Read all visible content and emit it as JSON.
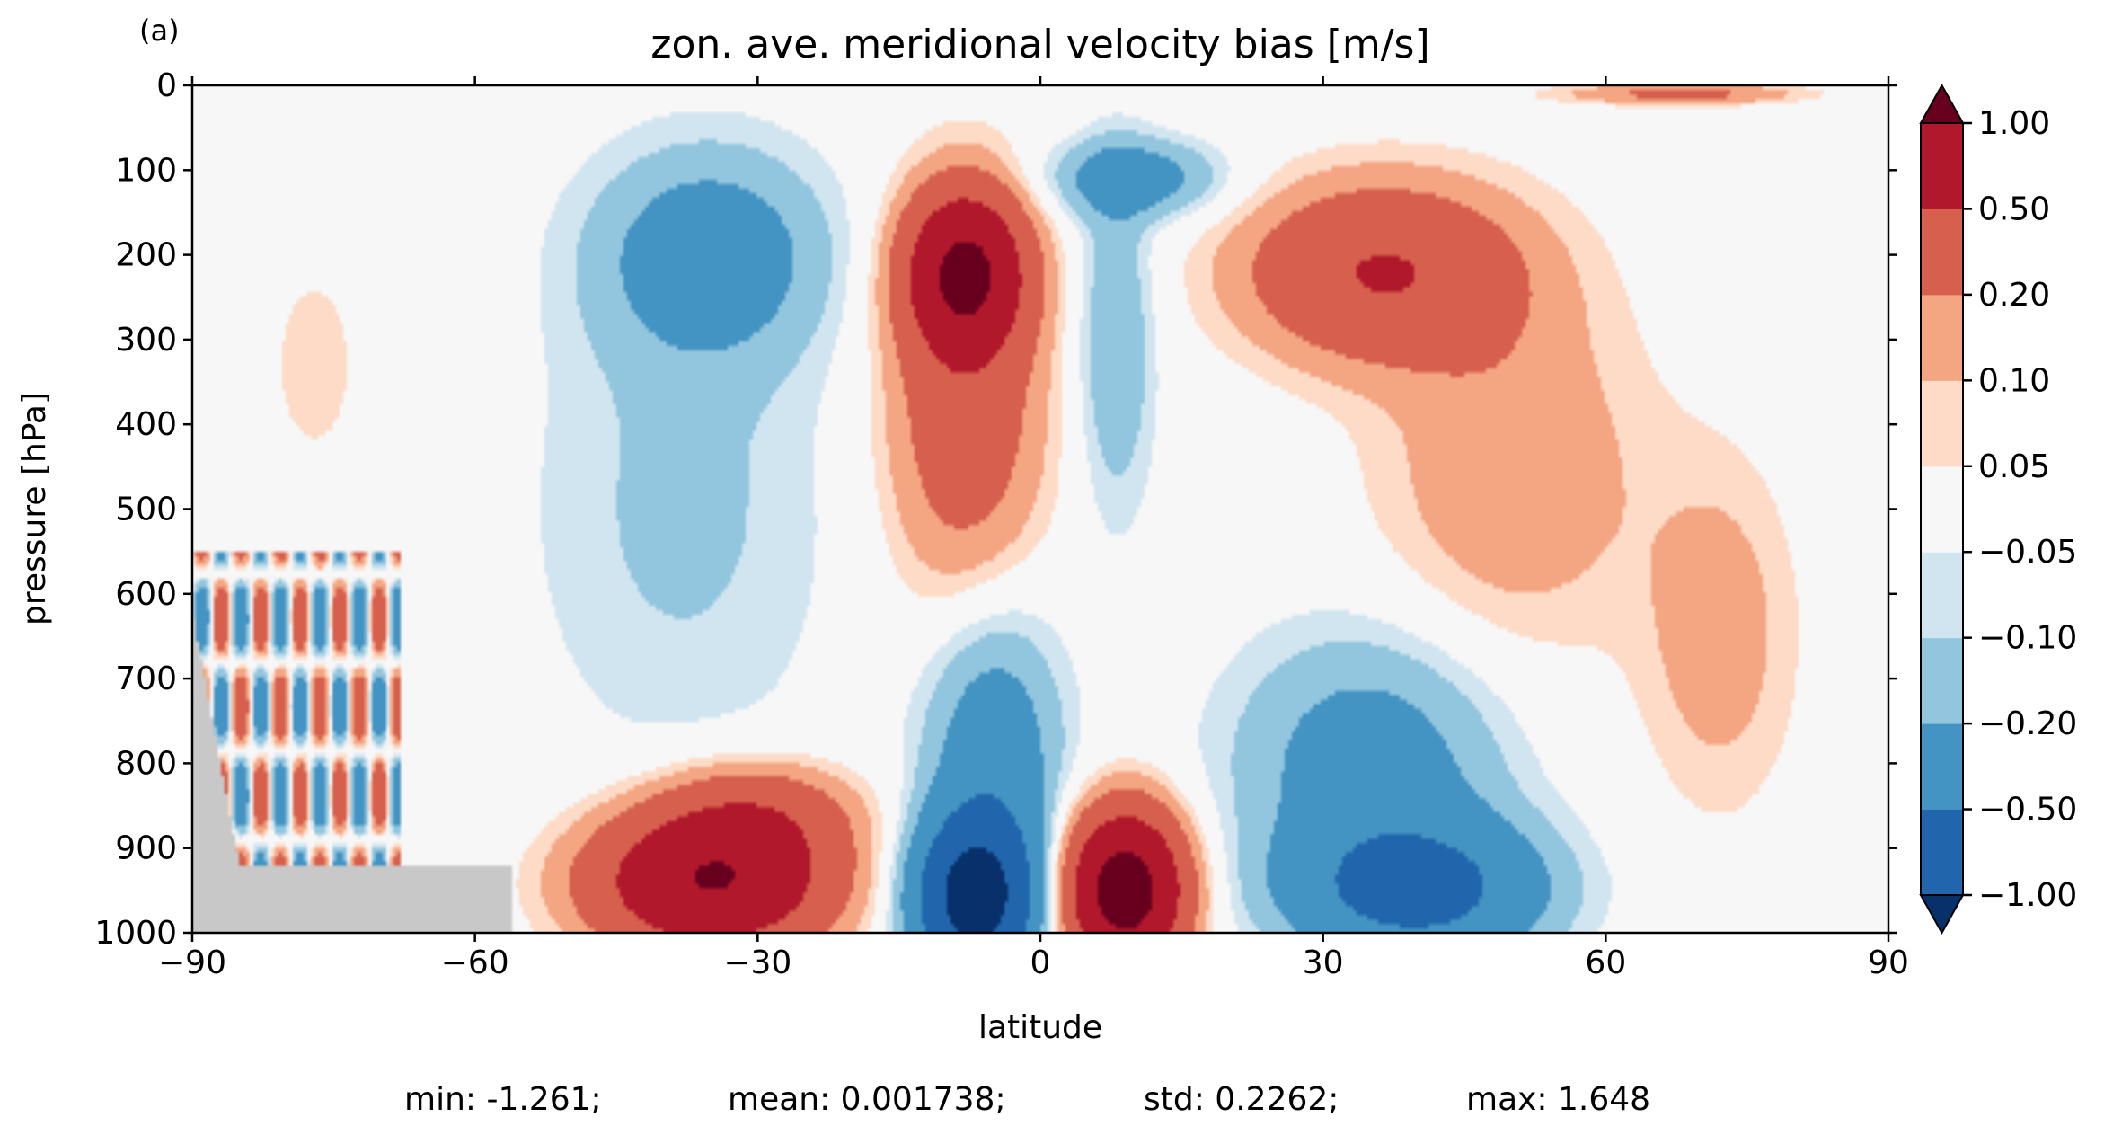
{
  "panel_label": "(a)",
  "chart_data": {
    "type": "heatmap",
    "subtype": "filled-contour",
    "title": "zon. ave. meridional velocity bias [m/s]",
    "xlabel": "latitude",
    "ylabel": "pressure [hPa]",
    "xlim": [
      -90,
      90
    ],
    "ylim": [
      1000,
      0
    ],
    "y_inverted": true,
    "xticks": [
      -90,
      -60,
      -30,
      0,
      30,
      60,
      90
    ],
    "xtick_labels": [
      "−90",
      "−60",
      "−30",
      "0",
      "30",
      "60",
      "90"
    ],
    "yticks": [
      0,
      100,
      200,
      300,
      400,
      500,
      600,
      700,
      800,
      900,
      1000
    ],
    "ytick_labels": [
      "0",
      "100",
      "200",
      "300",
      "400",
      "500",
      "600",
      "700",
      "800",
      "900",
      "1000"
    ],
    "colorbar": {
      "levels": [
        -1.0,
        -0.5,
        -0.2,
        -0.1,
        -0.05,
        0.05,
        0.1,
        0.2,
        0.5,
        1.0
      ],
      "tick_labels": [
        "−1.00",
        "−0.50",
        "−0.20",
        "−0.10",
        "−0.05",
        "0.05",
        "0.10",
        "0.20",
        "0.50",
        "1.00"
      ],
      "colors": [
        "#08306b",
        "#2166ac",
        "#4393c3",
        "#92c5de",
        "#d1e5f0",
        "#f7f7f7",
        "#fddbc7",
        "#f4a582",
        "#d6604d",
        "#b2182b",
        "#67001f"
      ],
      "extend": "both"
    },
    "mask_color": "#c8c8c8",
    "features": [
      {
        "lat": -35,
        "p": 200,
        "value": -0.3,
        "slat": 12,
        "sp": 120
      },
      {
        "lat": -38,
        "p": 500,
        "value": -0.12,
        "slat": 16,
        "sp": 300
      },
      {
        "lat": -8,
        "p": 220,
        "value": 1.0,
        "slat": 6,
        "sp": 90
      },
      {
        "lat": -8,
        "p": 380,
        "value": 0.35,
        "slat": 8,
        "sp": 220
      },
      {
        "lat": 10,
        "p": 110,
        "value": -0.3,
        "slat": 9,
        "sp": 45
      },
      {
        "lat": 8,
        "p": 300,
        "value": -0.2,
        "slat": 4,
        "sp": 200
      },
      {
        "lat": 36,
        "p": 220,
        "value": 0.5,
        "slat": 14,
        "sp": 100
      },
      {
        "lat": 50,
        "p": 450,
        "value": 0.18,
        "slat": 14,
        "sp": 220
      },
      {
        "lat": 72,
        "p": 650,
        "value": 0.15,
        "slat": 8,
        "sp": 200
      },
      {
        "lat": -35,
        "p": 940,
        "value": 1.0,
        "slat": 12,
        "sp": 80
      },
      {
        "lat": -30,
        "p": 860,
        "value": 0.3,
        "slat": 10,
        "sp": 60
      },
      {
        "lat": -7,
        "p": 960,
        "value": -1.2,
        "slat": 6,
        "sp": 90
      },
      {
        "lat": -5,
        "p": 800,
        "value": -0.35,
        "slat": 7,
        "sp": 180
      },
      {
        "lat": 9,
        "p": 950,
        "value": 1.3,
        "slat": 6,
        "sp": 90
      },
      {
        "lat": 40,
        "p": 950,
        "value": -0.6,
        "slat": 13,
        "sp": 80
      },
      {
        "lat": 35,
        "p": 800,
        "value": -0.3,
        "slat": 14,
        "sp": 150
      },
      {
        "lat": 68,
        "p": 10,
        "value": 0.25,
        "slat": 12,
        "sp": 12
      },
      {
        "lat": -77,
        "p": 330,
        "value": 0.07,
        "slat": 6,
        "sp": 150
      }
    ]
  },
  "stats": {
    "min": "min: -1.261;",
    "mean": "mean: 0.001738;",
    "std": "std: 0.2262;",
    "max": "max: 1.648"
  }
}
